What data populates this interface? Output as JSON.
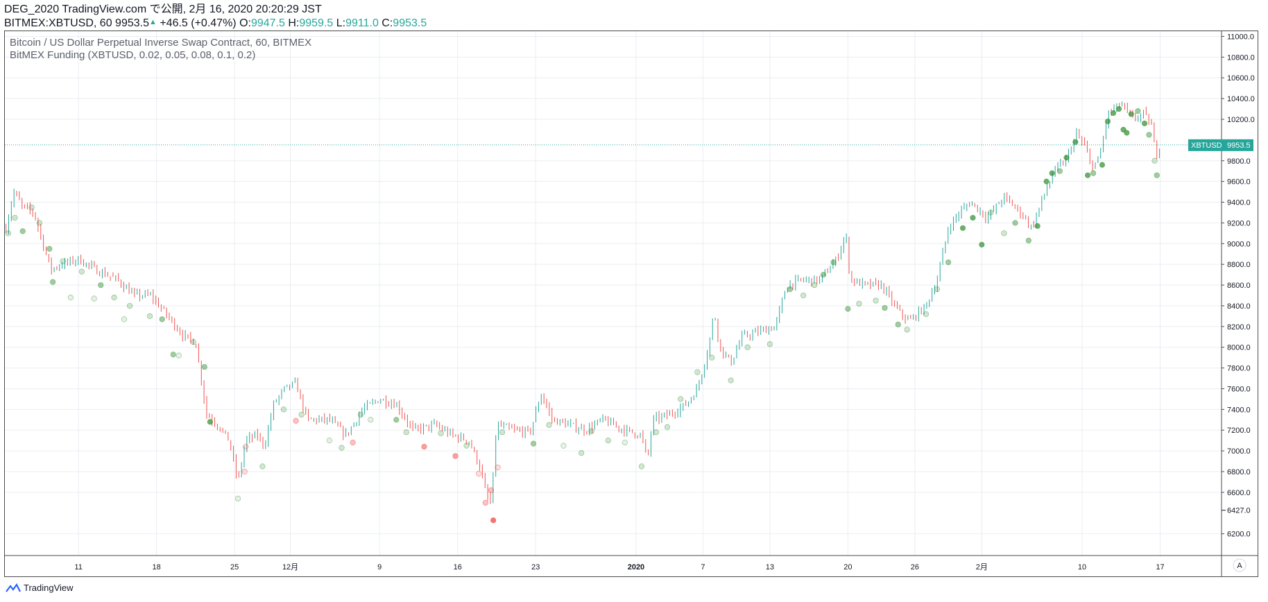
{
  "header": {
    "line1": "DEG_2020 TradingView.com で公開, 2月 16, 2020 20:20:29 JST",
    "symbol": "BITMEX:XBTUSD, 60",
    "last": "9953.5",
    "change": "+46.5 (+0.47%)",
    "o_label": "O:",
    "o_value": "9947.5",
    "h_label": "H:",
    "h_value": "9959.5",
    "l_label": "L:",
    "l_value": "9911.0",
    "c_label": "C:",
    "c_value": "9953.5"
  },
  "footer": {
    "brand": "TradingView"
  },
  "colors": {
    "up": "#26a69a",
    "down": "#ef5350",
    "grid": "#e9edf2",
    "dot_green": "#2e8b2e",
    "dot_red": "#ef5350",
    "badge": "#26a69a"
  },
  "chart_data": {
    "type": "candlestick",
    "legend_lines": [
      "Bitcoin / US Dollar Perpetual Inverse Swap Contract, 60, BITMEX",
      "BitMEX Funding (XBTUSD, 0.02, 0.05, 0.08, 0.1, 0.2)"
    ],
    "y_ticks": [
      11000.0,
      10800.0,
      10600.0,
      10400.0,
      10200.0,
      9800.0,
      9600.0,
      9400.0,
      9200.0,
      9000.0,
      8800.0,
      8600.0,
      8400.0,
      8200.0,
      8000.0,
      7800.0,
      7600.0,
      7400.0,
      7200.0,
      7000.0,
      6800.0,
      6600.0,
      6200.0
    ],
    "y_tick_labels": [
      "11000.0",
      "10800.0",
      "10600.0",
      "10400.0",
      "10200.0",
      "9800.0",
      "9600.0",
      "9400.0",
      "9200.0",
      "9000.0",
      "8800.0",
      "8600.0",
      "8400.0",
      "8200.0",
      "8000.0",
      "7800.0",
      "7600.0",
      "7400.0",
      "7200.0",
      "7000.0",
      "6800.0",
      "6600.0",
      "6200.0"
    ],
    "ylim": [
      5990,
      11050
    ],
    "x_ticks": [
      {
        "day": 11,
        "label": "11"
      },
      {
        "day": 18,
        "label": "18"
      },
      {
        "day": 25,
        "label": "25"
      },
      {
        "day": 30,
        "label": "12月"
      },
      {
        "day": 38,
        "label": "9"
      },
      {
        "day": 45,
        "label": "16"
      },
      {
        "day": 52,
        "label": "23"
      },
      {
        "day": 61,
        "label": "2020",
        "bold": true
      },
      {
        "day": 67,
        "label": "7"
      },
      {
        "day": 73,
        "label": "13"
      },
      {
        "day": 80,
        "label": "20"
      },
      {
        "day": 86,
        "label": "26"
      },
      {
        "day": 92,
        "label": "2月"
      },
      {
        "day": 101,
        "label": "10"
      },
      {
        "day": 108,
        "label": "17"
      }
    ],
    "xlim_days": [
      4.4,
      113.5
    ],
    "last_price": 9953.5,
    "last_price_label": "XBTUSD",
    "last_price_value": "9953.5",
    "low_marker_value": "6427.0",
    "low_marker": 6427.0,
    "corner_label": "A",
    "price_path": [
      {
        "d": 4.5,
        "p": 9150
      },
      {
        "d": 5.2,
        "p": 9500
      },
      {
        "d": 6.0,
        "p": 9350
      },
      {
        "d": 7.0,
        "p": 9300
      },
      {
        "d": 8.5,
        "p": 8750
      },
      {
        "d": 9.5,
        "p": 8800
      },
      {
        "d": 11.0,
        "p": 8850
      },
      {
        "d": 12.5,
        "p": 8750
      },
      {
        "d": 14.5,
        "p": 8650
      },
      {
        "d": 16.0,
        "p": 8500
      },
      {
        "d": 17.5,
        "p": 8500
      },
      {
        "d": 19.0,
        "p": 8300
      },
      {
        "d": 20.5,
        "p": 8100
      },
      {
        "d": 21.5,
        "p": 8050
      },
      {
        "d": 22.5,
        "p": 7350
      },
      {
        "d": 23.5,
        "p": 7250
      },
      {
        "d": 24.5,
        "p": 7100
      },
      {
        "d": 25.3,
        "p": 6700
      },
      {
        "d": 26.0,
        "p": 7100
      },
      {
        "d": 27.0,
        "p": 7150
      },
      {
        "d": 27.7,
        "p": 7050
      },
      {
        "d": 28.5,
        "p": 7450
      },
      {
        "d": 29.5,
        "p": 7600
      },
      {
        "d": 30.5,
        "p": 7650
      },
      {
        "d": 31.5,
        "p": 7300
      },
      {
        "d": 33.5,
        "p": 7300
      },
      {
        "d": 35.0,
        "p": 7150
      },
      {
        "d": 36.5,
        "p": 7400
      },
      {
        "d": 38.0,
        "p": 7500
      },
      {
        "d": 39.5,
        "p": 7450
      },
      {
        "d": 41.0,
        "p": 7200
      },
      {
        "d": 43.0,
        "p": 7250
      },
      {
        "d": 44.5,
        "p": 7150
      },
      {
        "d": 46.0,
        "p": 7100
      },
      {
        "d": 47.0,
        "p": 6850
      },
      {
        "d": 47.5,
        "p": 6600
      },
      {
        "d": 48.0,
        "p": 6480
      },
      {
        "d": 48.5,
        "p": 7250
      },
      {
        "d": 50.0,
        "p": 7200
      },
      {
        "d": 51.5,
        "p": 7180
      },
      {
        "d": 52.5,
        "p": 7550
      },
      {
        "d": 53.5,
        "p": 7300
      },
      {
        "d": 55.0,
        "p": 7250
      },
      {
        "d": 56.5,
        "p": 7200
      },
      {
        "d": 58.0,
        "p": 7300
      },
      {
        "d": 59.0,
        "p": 7250
      },
      {
        "d": 60.0,
        "p": 7200
      },
      {
        "d": 61.5,
        "p": 7150
      },
      {
        "d": 62.0,
        "p": 6900
      },
      {
        "d": 62.5,
        "p": 7300
      },
      {
        "d": 64.0,
        "p": 7350
      },
      {
        "d": 65.5,
        "p": 7450
      },
      {
        "d": 66.5,
        "p": 7600
      },
      {
        "d": 67.5,
        "p": 8000
      },
      {
        "d": 68.0,
        "p": 8350
      },
      {
        "d": 68.5,
        "p": 8000
      },
      {
        "d": 69.5,
        "p": 7850
      },
      {
        "d": 70.5,
        "p": 8100
      },
      {
        "d": 72.0,
        "p": 8150
      },
      {
        "d": 73.5,
        "p": 8200
      },
      {
        "d": 74.5,
        "p": 8600
      },
      {
        "d": 76.0,
        "p": 8650
      },
      {
        "d": 77.5,
        "p": 8650
      },
      {
        "d": 79.0,
        "p": 8850
      },
      {
        "d": 79.8,
        "p": 9100
      },
      {
        "d": 80.2,
        "p": 8650
      },
      {
        "d": 81.5,
        "p": 8600
      },
      {
        "d": 83.0,
        "p": 8600
      },
      {
        "d": 84.5,
        "p": 8350
      },
      {
        "d": 85.5,
        "p": 8250
      },
      {
        "d": 87.0,
        "p": 8400
      },
      {
        "d": 88.0,
        "p": 8650
      },
      {
        "d": 89.0,
        "p": 9150
      },
      {
        "d": 90.0,
        "p": 9300
      },
      {
        "d": 91.0,
        "p": 9400
      },
      {
        "d": 92.5,
        "p": 9250
      },
      {
        "d": 94.0,
        "p": 9450
      },
      {
        "d": 95.5,
        "p": 9300
      },
      {
        "d": 96.5,
        "p": 9150
      },
      {
        "d": 97.5,
        "p": 9450
      },
      {
        "d": 98.5,
        "p": 9700
      },
      {
        "d": 99.5,
        "p": 9800
      },
      {
        "d": 100.5,
        "p": 10050
      },
      {
        "d": 101.2,
        "p": 9950
      },
      {
        "d": 101.8,
        "p": 9750
      },
      {
        "d": 102.5,
        "p": 9800
      },
      {
        "d": 103.3,
        "p": 10250
      },
      {
        "d": 104.5,
        "p": 10350
      },
      {
        "d": 105.5,
        "p": 10200
      },
      {
        "d": 106.5,
        "p": 10250
      },
      {
        "d": 107.2,
        "p": 10150
      },
      {
        "d": 107.6,
        "p": 9850
      },
      {
        "d": 108.0,
        "p": 9950
      }
    ],
    "funding_dots": [
      {
        "d": 4.7,
        "p": 9100,
        "i": 1
      },
      {
        "d": 5.3,
        "p": 9250,
        "i": 1
      },
      {
        "d": 6.0,
        "p": 9120,
        "i": 2
      },
      {
        "d": 6.8,
        "p": 9350,
        "i": 1
      },
      {
        "d": 7.5,
        "p": 9200,
        "i": 1
      },
      {
        "d": 8.4,
        "p": 8950,
        "i": 2
      },
      {
        "d": 8.7,
        "p": 8630,
        "i": 2
      },
      {
        "d": 9.6,
        "p": 8830,
        "i": 1
      },
      {
        "d": 10.3,
        "p": 8480,
        "i": 0
      },
      {
        "d": 11.3,
        "p": 8730,
        "i": 1
      },
      {
        "d": 12.4,
        "p": 8470,
        "i": 0
      },
      {
        "d": 13.0,
        "p": 8600,
        "i": 2
      },
      {
        "d": 14.2,
        "p": 8480,
        "i": 1
      },
      {
        "d": 15.1,
        "p": 8270,
        "i": 0
      },
      {
        "d": 15.6,
        "p": 8400,
        "i": 1
      },
      {
        "d": 17.4,
        "p": 8300,
        "i": 1
      },
      {
        "d": 18.5,
        "p": 8270,
        "i": 2
      },
      {
        "d": 19.5,
        "p": 7930,
        "i": 2
      },
      {
        "d": 20.0,
        "p": 7920,
        "i": 0
      },
      {
        "d": 21.3,
        "p": 8050,
        "i": 1
      },
      {
        "d": 22.3,
        "p": 7810,
        "i": 2
      },
      {
        "d": 22.8,
        "p": 7280,
        "i": 3
      },
      {
        "d": 25.3,
        "p": 6540,
        "i": 0
      },
      {
        "d": 25.9,
        "p": 6800,
        "i": 4
      },
      {
        "d": 26.0,
        "p": 7040,
        "i": 4
      },
      {
        "d": 27.5,
        "p": 6850,
        "i": 1
      },
      {
        "d": 29.4,
        "p": 7400,
        "i": 1
      },
      {
        "d": 30.5,
        "p": 7290,
        "i": 5
      },
      {
        "d": 31.0,
        "p": 7350,
        "i": 1
      },
      {
        "d": 33.5,
        "p": 7100,
        "i": 0
      },
      {
        "d": 34.6,
        "p": 7030,
        "i": 1
      },
      {
        "d": 35.6,
        "p": 7080,
        "i": 5
      },
      {
        "d": 36.3,
        "p": 7350,
        "i": 1
      },
      {
        "d": 37.2,
        "p": 7300,
        "i": 0
      },
      {
        "d": 39.5,
        "p": 7300,
        "i": 2
      },
      {
        "d": 40.4,
        "p": 7180,
        "i": 1
      },
      {
        "d": 42.0,
        "p": 7040,
        "i": 6
      },
      {
        "d": 43.5,
        "p": 7170,
        "i": 1
      },
      {
        "d": 44.8,
        "p": 6950,
        "i": 6
      },
      {
        "d": 45.8,
        "p": 7050,
        "i": 1
      },
      {
        "d": 46.9,
        "p": 6780,
        "i": 4
      },
      {
        "d": 47.5,
        "p": 6500,
        "i": 5
      },
      {
        "d": 48.0,
        "p": 6620,
        "i": 5
      },
      {
        "d": 48.2,
        "p": 6330,
        "i": 7
      },
      {
        "d": 48.6,
        "p": 6840,
        "i": 4
      },
      {
        "d": 49.0,
        "p": 7180,
        "i": 1
      },
      {
        "d": 51.8,
        "p": 7070,
        "i": 2
      },
      {
        "d": 53.2,
        "p": 7250,
        "i": 1
      },
      {
        "d": 54.5,
        "p": 7050,
        "i": 0
      },
      {
        "d": 56.1,
        "p": 6980,
        "i": 1
      },
      {
        "d": 57.0,
        "p": 7190,
        "i": 1
      },
      {
        "d": 58.5,
        "p": 7100,
        "i": 1
      },
      {
        "d": 60.0,
        "p": 7080,
        "i": 0
      },
      {
        "d": 61.5,
        "p": 6850,
        "i": 1
      },
      {
        "d": 62.8,
        "p": 7180,
        "i": 1
      },
      {
        "d": 63.8,
        "p": 7230,
        "i": 1
      },
      {
        "d": 65.0,
        "p": 7500,
        "i": 1
      },
      {
        "d": 66.5,
        "p": 7760,
        "i": 1
      },
      {
        "d": 67.8,
        "p": 7900,
        "i": 1
      },
      {
        "d": 69.5,
        "p": 7680,
        "i": 1
      },
      {
        "d": 71.0,
        "p": 8000,
        "i": 1
      },
      {
        "d": 73.0,
        "p": 8030,
        "i": 1
      },
      {
        "d": 74.8,
        "p": 8560,
        "i": 2
      },
      {
        "d": 76.0,
        "p": 8500,
        "i": 1
      },
      {
        "d": 77.0,
        "p": 8600,
        "i": 1
      },
      {
        "d": 77.8,
        "p": 8700,
        "i": 2
      },
      {
        "d": 78.7,
        "p": 8820,
        "i": 2
      },
      {
        "d": 80.0,
        "p": 8370,
        "i": 2
      },
      {
        "d": 81.0,
        "p": 8420,
        "i": 1
      },
      {
        "d": 82.5,
        "p": 8450,
        "i": 1
      },
      {
        "d": 83.3,
        "p": 8380,
        "i": 2
      },
      {
        "d": 84.5,
        "p": 8220,
        "i": 2
      },
      {
        "d": 85.3,
        "p": 8170,
        "i": 1
      },
      {
        "d": 87.0,
        "p": 8320,
        "i": 1
      },
      {
        "d": 88.0,
        "p": 8560,
        "i": 1
      },
      {
        "d": 89.0,
        "p": 8820,
        "i": 2
      },
      {
        "d": 90.3,
        "p": 9150,
        "i": 3
      },
      {
        "d": 91.2,
        "p": 9250,
        "i": 3
      },
      {
        "d": 92.0,
        "p": 8990,
        "i": 3
      },
      {
        "d": 92.8,
        "p": 9300,
        "i": 1
      },
      {
        "d": 94.0,
        "p": 9100,
        "i": 1
      },
      {
        "d": 95.0,
        "p": 9200,
        "i": 2
      },
      {
        "d": 96.2,
        "p": 9030,
        "i": 2
      },
      {
        "d": 97.0,
        "p": 9170,
        "i": 3
      },
      {
        "d": 97.8,
        "p": 9600,
        "i": 3
      },
      {
        "d": 98.3,
        "p": 9680,
        "i": 3
      },
      {
        "d": 99.0,
        "p": 9700,
        "i": 2
      },
      {
        "d": 99.6,
        "p": 9830,
        "i": 3
      },
      {
        "d": 100.4,
        "p": 9980,
        "i": 3
      },
      {
        "d": 101.5,
        "p": 9660,
        "i": 3
      },
      {
        "d": 102.0,
        "p": 9680,
        "i": 2
      },
      {
        "d": 102.8,
        "p": 9760,
        "i": 3
      },
      {
        "d": 103.3,
        "p": 10180,
        "i": 3
      },
      {
        "d": 103.8,
        "p": 10260,
        "i": 3
      },
      {
        "d": 104.3,
        "p": 10300,
        "i": 3
      },
      {
        "d": 104.7,
        "p": 10100,
        "i": 3
      },
      {
        "d": 105.0,
        "p": 10070,
        "i": 3
      },
      {
        "d": 105.4,
        "p": 10250,
        "i": 3
      },
      {
        "d": 106.0,
        "p": 10280,
        "i": 2
      },
      {
        "d": 106.6,
        "p": 10160,
        "i": 3
      },
      {
        "d": 107.0,
        "p": 10050,
        "i": 2
      },
      {
        "d": 107.5,
        "p": 9800,
        "i": 1
      },
      {
        "d": 107.7,
        "p": 9660,
        "i": 2
      }
    ]
  }
}
